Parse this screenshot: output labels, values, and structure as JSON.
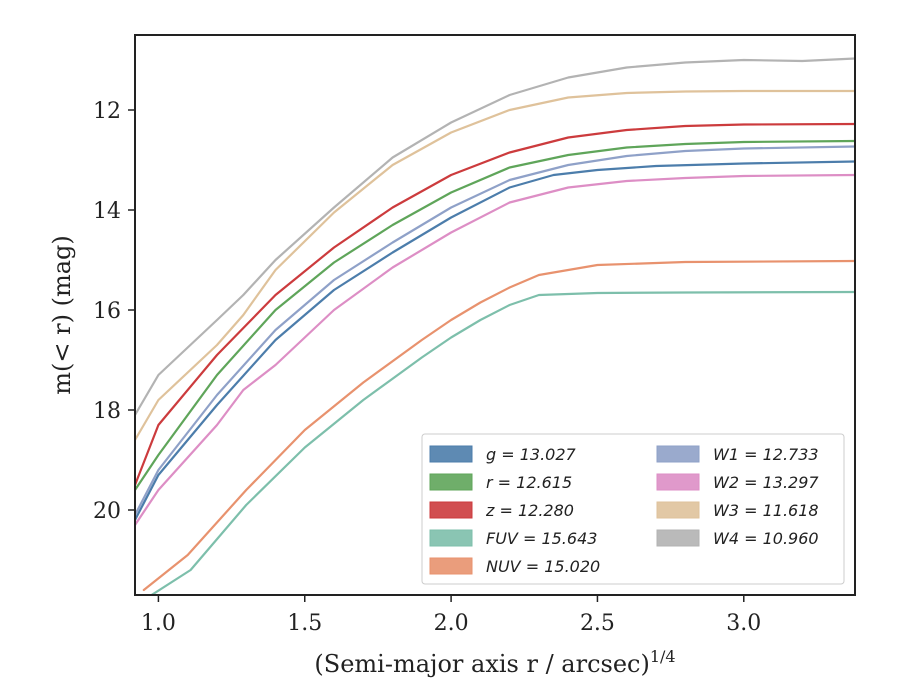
{
  "chart_data": {
    "type": "line",
    "title": "",
    "xlabel": "(Semi-major axis r / arcsec)",
    "xlabel_exponent": "1/4",
    "ylabel": "m(< r) (mag)",
    "xlim": [
      0.92,
      3.38
    ],
    "ylim": [
      21.7,
      10.5
    ],
    "y_inverted": true,
    "grid": false,
    "legend_position": "lower-right",
    "x_ticks": [
      1.0,
      1.5,
      2.0,
      2.5,
      3.0
    ],
    "x_tick_labels": [
      "1.0",
      "1.5",
      "2.0",
      "2.5",
      "3.0"
    ],
    "y_ticks": [
      12,
      14,
      16,
      18,
      20
    ],
    "y_tick_labels": [
      "12",
      "14",
      "16",
      "18",
      "20"
    ],
    "series": [
      {
        "name": "g",
        "total": "13.027",
        "label": "g = 13.027",
        "color": "#4c7dab",
        "x": [
          0.92,
          1.0,
          1.2,
          1.4,
          1.6,
          1.8,
          2.0,
          2.2,
          2.35,
          2.5,
          2.7,
          3.0,
          3.38
        ],
        "y": [
          20.2,
          19.3,
          17.9,
          16.6,
          15.6,
          14.85,
          14.15,
          13.55,
          13.3,
          13.2,
          13.12,
          13.07,
          13.03
        ]
      },
      {
        "name": "r",
        "total": "12.615",
        "label": "r = 12.615",
        "color": "#5fa55a",
        "x": [
          0.92,
          1.0,
          1.2,
          1.4,
          1.6,
          1.8,
          2.0,
          2.2,
          2.4,
          2.6,
          2.8,
          3.0,
          3.38
        ],
        "y": [
          19.6,
          18.9,
          17.3,
          16.0,
          15.05,
          14.3,
          13.65,
          13.15,
          12.9,
          12.75,
          12.68,
          12.64,
          12.62
        ]
      },
      {
        "name": "z",
        "total": "12.280",
        "label": "z = 12.280",
        "color": "#cc3b3d",
        "x": [
          0.92,
          1.0,
          1.2,
          1.4,
          1.6,
          1.8,
          2.0,
          2.2,
          2.4,
          2.6,
          2.8,
          3.0,
          3.38
        ],
        "y": [
          19.5,
          18.3,
          16.9,
          15.7,
          14.75,
          13.95,
          13.3,
          12.85,
          12.55,
          12.4,
          12.32,
          12.29,
          12.28
        ]
      },
      {
        "name": "FUV",
        "total": "15.643",
        "label": "FUV = 15.643",
        "color": "#7dbfab",
        "x": [
          0.95,
          1.11,
          1.3,
          1.5,
          1.7,
          1.9,
          2.0,
          2.1,
          2.2,
          2.3,
          2.5,
          2.8,
          3.38
        ],
        "y": [
          21.8,
          21.2,
          19.9,
          18.75,
          17.8,
          16.95,
          16.55,
          16.2,
          15.9,
          15.7,
          15.66,
          15.65,
          15.64
        ]
      },
      {
        "name": "NUV",
        "total": "15.020",
        "label": "NUV = 15.020",
        "color": "#e8926e",
        "x": [
          0.95,
          1.1,
          1.3,
          1.5,
          1.7,
          1.9,
          2.0,
          2.1,
          2.2,
          2.3,
          2.5,
          2.8,
          3.38
        ],
        "y": [
          21.6,
          20.9,
          19.6,
          18.4,
          17.45,
          16.6,
          16.2,
          15.85,
          15.55,
          15.3,
          15.1,
          15.04,
          15.02
        ]
      },
      {
        "name": "W1",
        "total": "12.733",
        "label": "W1 = 12.733",
        "color": "#8fa1c8",
        "x": [
          0.92,
          1.0,
          1.2,
          1.4,
          1.6,
          1.8,
          2.0,
          2.2,
          2.4,
          2.6,
          2.8,
          3.0,
          3.38
        ],
        "y": [
          20.1,
          19.2,
          17.7,
          16.4,
          15.4,
          14.65,
          13.95,
          13.4,
          13.1,
          12.92,
          12.82,
          12.77,
          12.73
        ]
      },
      {
        "name": "W2",
        "total": "13.297",
        "label": "W2 = 13.297",
        "color": "#dd8ec5",
        "x": [
          0.92,
          1.0,
          1.2,
          1.29,
          1.4,
          1.6,
          1.8,
          2.0,
          2.2,
          2.4,
          2.6,
          2.8,
          3.0,
          3.38
        ],
        "y": [
          20.3,
          19.6,
          18.3,
          17.6,
          17.1,
          16.0,
          15.15,
          14.45,
          13.85,
          13.55,
          13.42,
          13.36,
          13.32,
          13.3
        ]
      },
      {
        "name": "W3",
        "total": "11.618",
        "label": "W3 = 11.618",
        "color": "#dfc29b",
        "x": [
          0.92,
          1.0,
          1.2,
          1.29,
          1.4,
          1.6,
          1.8,
          2.0,
          2.2,
          2.4,
          2.6,
          2.8,
          3.0,
          3.38
        ],
        "y": [
          18.6,
          17.8,
          16.7,
          16.1,
          15.2,
          14.05,
          13.1,
          12.45,
          12.0,
          11.75,
          11.66,
          11.63,
          11.62,
          11.62
        ]
      },
      {
        "name": "W4",
        "total": "10.960",
        "label": "W4 = 10.960",
        "color": "#b3b3b3",
        "x": [
          0.92,
          1.0,
          1.2,
          1.29,
          1.4,
          1.6,
          1.8,
          2.0,
          2.2,
          2.4,
          2.6,
          2.8,
          3.0,
          3.2,
          3.38
        ],
        "y": [
          18.1,
          17.3,
          16.2,
          15.7,
          15.0,
          13.95,
          12.95,
          12.25,
          11.7,
          11.35,
          11.15,
          11.05,
          11.0,
          11.02,
          10.97
        ]
      }
    ]
  }
}
